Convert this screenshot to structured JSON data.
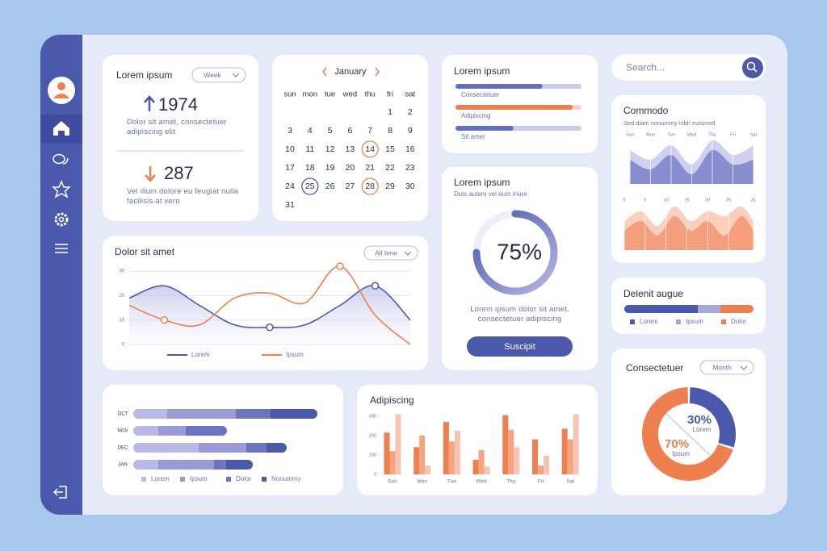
{
  "stats": {
    "title": "Lorem ipsum",
    "period": "Week",
    "primary": {
      "value": 1974,
      "text": "Dolor sit amet, consectetuer adipiscing elit"
    },
    "secondary": {
      "value": 287,
      "text": "Vel illum dolore eu feugiat nulla facilisis at vero"
    }
  },
  "calendar": {
    "month": "January",
    "weekdays": [
      "sun",
      "mon",
      "tue",
      "wed",
      "thu",
      "fri",
      "sat"
    ],
    "days": [
      1,
      2,
      3,
      4,
      5,
      6,
      7,
      8,
      9,
      10,
      11,
      12,
      13,
      14,
      15,
      16,
      17,
      18,
      19,
      20,
      21,
      22,
      23,
      24,
      25,
      26,
      27,
      28,
      29,
      30,
      31
    ]
  },
  "progress": {
    "title": "Lorem ipsum",
    "items": [
      {
        "label": "Consectetuer",
        "value": 69,
        "color": "#6470bf"
      },
      {
        "label": "Adipiscing",
        "value": 93,
        "color": "#f07f4f"
      },
      {
        "label": "Sit amet",
        "value": 46,
        "color": "#6470bf"
      }
    ]
  },
  "search": {
    "placeholder": "Search..."
  },
  "gauge": {
    "title": "Lorem ipsum",
    "subtitle": "Duis autem vel eum iriure",
    "value": 75,
    "value_label": "75%",
    "text": "Lorem ipsum dolor sit amet, consectetuer adipiscing",
    "button": "Suscipit"
  },
  "chart_data": [
    {
      "type": "line",
      "title": "Dolor sit amet",
      "period": "All time",
      "ylim": [
        0,
        33
      ],
      "yticks": [
        0,
        10,
        20,
        30
      ],
      "grid": true,
      "series": [
        {
          "name": "Lorem",
          "color": "#4b59ad",
          "values": [
            19,
            24,
            16,
            8,
            7,
            8,
            16,
            24,
            10
          ]
        },
        {
          "name": "Ipsum",
          "color": "#f07f4f",
          "values": [
            16,
            10,
            8,
            19,
            21,
            17,
            32,
            12,
            0
          ]
        }
      ]
    },
    {
      "type": "bar",
      "orientation": "horizontal",
      "stacked": true,
      "categories": [
        "OCT",
        "NOV",
        "DEC",
        "JAN"
      ],
      "series": [
        {
          "name": "Lorem",
          "color": "#b9b8e6",
          "values": [
            42,
            31,
            81,
            31
          ]
        },
        {
          "name": "Ipsum",
          "color": "#9a9ad6",
          "values": [
            85,
            34,
            59,
            69
          ]
        },
        {
          "name": "Dolor",
          "color": "#6c74c2",
          "values": [
            43,
            51,
            25,
            15
          ]
        },
        {
          "name": "Nonummy",
          "color": "#4b59ad",
          "values": [
            58,
            0,
            25,
            33
          ]
        }
      ]
    },
    {
      "type": "bar",
      "title": "Adipiscing",
      "categories": [
        "Sun",
        "Mon",
        "Tue",
        "Wed",
        "Thu",
        "Fri",
        "Sat"
      ],
      "ylim": [
        0,
        320
      ],
      "yticks": [
        0,
        100,
        200,
        300
      ],
      "series": [
        {
          "color": "#f07f4f",
          "values": [
            215,
            140,
            270,
            75,
            305,
            180,
            235
          ]
        },
        {
          "color": "#f5a680",
          "values": [
            120,
            200,
            170,
            125,
            230,
            45,
            180
          ]
        },
        {
          "color": "#f8c3b5",
          "values": [
            310,
            45,
            225,
            40,
            140,
            95,
            310
          ]
        }
      ]
    },
    {
      "type": "area",
      "title": "Commodo",
      "subtitle": "Sed diam nonummy nibh euismod",
      "categories": [
        "Sun",
        "Mon",
        "Tue",
        "Wed",
        "Thu",
        "Fri",
        "Sat"
      ],
      "series": [
        {
          "color": "#c7c8ec",
          "values": [
            7,
            5,
            8,
            4,
            9,
            6,
            8
          ]
        },
        {
          "color": "#7c81c9",
          "values": [
            5,
            3,
            6,
            2,
            7,
            4,
            5
          ]
        }
      ]
    },
    {
      "type": "area",
      "x": [
        0,
        4,
        8,
        12,
        16,
        20,
        24,
        28,
        31
      ],
      "xlim": [
        0,
        31
      ],
      "xticks": [
        0,
        5,
        10,
        15,
        20,
        25,
        31
      ],
      "series": [
        {
          "color": "#f9c8b2",
          "values": [
            6,
            8,
            5,
            9,
            6,
            8,
            7,
            9,
            6
          ]
        },
        {
          "color": "#f29570",
          "values": [
            4,
            6,
            3,
            7,
            4,
            6,
            3,
            7,
            4
          ]
        }
      ]
    },
    {
      "type": "bar",
      "orientation": "horizontal",
      "stacked": true,
      "title": "Delenit augue",
      "categories": [
        "Lorem",
        "Ipsum",
        "Dolor"
      ],
      "values": [
        57,
        17,
        26
      ],
      "colors": [
        "#4b59ad",
        "#a7a8da",
        "#f07f4f"
      ]
    },
    {
      "type": "pie",
      "donut": true,
      "title": "Consectetuer",
      "period": "Month",
      "categories": [
        "Lorem",
        "Ipsum"
      ],
      "values": [
        30,
        70
      ],
      "value_labels": [
        "30%",
        "70%"
      ],
      "colors": [
        "#4b59ad",
        "#f07f4f"
      ]
    }
  ]
}
